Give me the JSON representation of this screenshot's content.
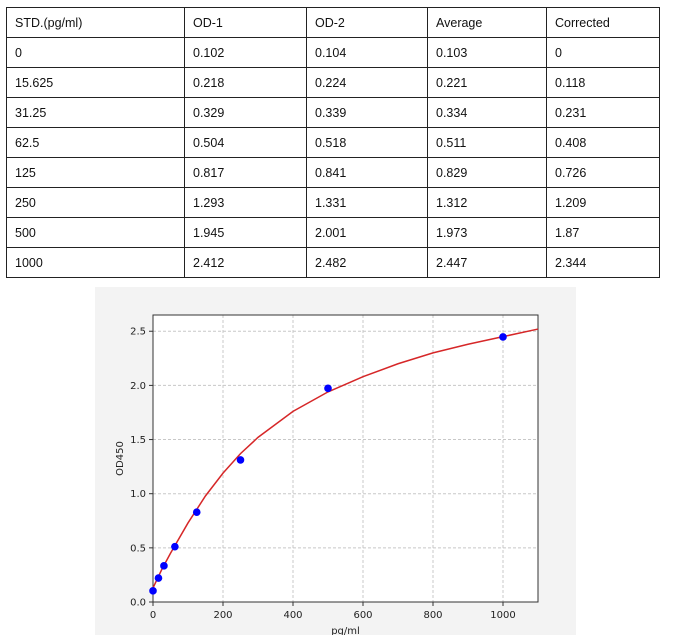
{
  "table": {
    "headers": [
      "STD.(pg/ml)",
      "OD-1",
      "OD-2",
      "Average",
      "Corrected"
    ],
    "rows": [
      [
        "0",
        "0.102",
        "0.104",
        "0.103",
        "0"
      ],
      [
        "15.625",
        "0.218",
        "0.224",
        "0.221",
        "0.118"
      ],
      [
        "31.25",
        "0.329",
        "0.339",
        "0.334",
        "0.231"
      ],
      [
        "62.5",
        "0.504",
        "0.518",
        "0.511",
        "0.408"
      ],
      [
        "125",
        "0.817",
        "0.841",
        "0.829",
        "0.726"
      ],
      [
        "250",
        "1.293",
        "1.331",
        "1.312",
        "1.209"
      ],
      [
        "500",
        "1.945",
        "2.001",
        "1.973",
        "1.87"
      ],
      [
        "1000",
        "2.412",
        "2.482",
        "2.447",
        "2.344"
      ]
    ]
  },
  "chart_data": {
    "type": "scatter",
    "xlabel": "pg/ml",
    "ylabel": "OD450",
    "xlim": [
      0,
      1100
    ],
    "ylim": [
      0,
      2.65
    ],
    "xticks": [
      "0",
      "200",
      "400",
      "600",
      "800",
      "1000"
    ],
    "yticks": [
      "0.0",
      "0.5",
      "1.0",
      "1.5",
      "2.0",
      "2.5"
    ],
    "grid": true,
    "points": {
      "x": [
        0,
        15.625,
        31.25,
        62.5,
        125,
        250,
        500,
        1000
      ],
      "y": [
        0.103,
        0.221,
        0.334,
        0.511,
        0.829,
        1.312,
        1.973,
        2.447
      ],
      "color": "#0000ff"
    },
    "fit_curve": {
      "x": [
        0,
        25,
        50,
        100,
        150,
        200,
        250,
        300,
        400,
        500,
        600,
        700,
        800,
        900,
        1000,
        1100
      ],
      "y": [
        0.13,
        0.3,
        0.45,
        0.73,
        0.98,
        1.19,
        1.37,
        1.52,
        1.76,
        1.94,
        2.08,
        2.2,
        2.3,
        2.38,
        2.45,
        2.52
      ],
      "color": "#d62728"
    }
  }
}
